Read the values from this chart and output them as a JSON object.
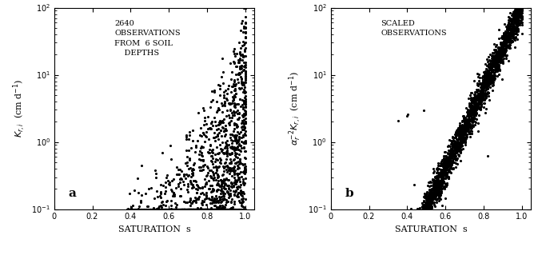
{
  "panel_a_annotation": "2640\nOBSERVATIONS\nFROM  6 SOIL\n    DEPTHS",
  "panel_b_annotation": "SCALED\nOBSERVATIONS",
  "xlabel": "SATURATION  s",
  "ylabel_a": "$K_{r,i}$  (cm d$^{-1}$)",
  "ylabel_b": "$\\alpha_r^{-2} K_{r,i}$  (cm d$^{-1}$)",
  "label_a": "a",
  "label_b": "b",
  "ylim": [
    0.1,
    100.0
  ],
  "yticks_log": [
    0.1,
    1.0,
    10.0,
    100.0
  ],
  "xticks": [
    0,
    0.2,
    0.4,
    0.6,
    0.8,
    1.0
  ],
  "dot_color": "#000000",
  "dot_size": 5.0,
  "background": "#ffffff",
  "seed": 42
}
